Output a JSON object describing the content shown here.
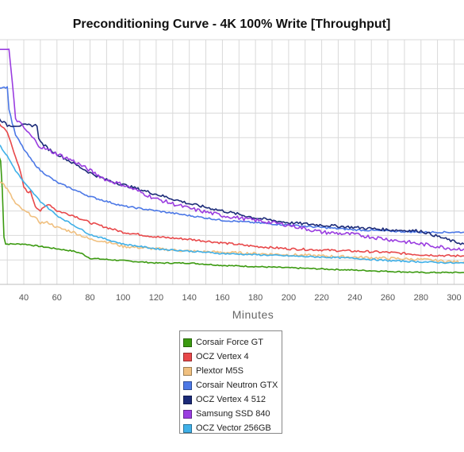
{
  "chart_data": {
    "type": "line",
    "title": "Preconditioning Curve - 4K 100% Write [Throughput]",
    "xlabel": "Minutes",
    "ylabel": "",
    "x_ticks": [
      40,
      60,
      80,
      100,
      120,
      140,
      160,
      180,
      200,
      220,
      240,
      260,
      280,
      300
    ],
    "xlim": [
      25,
      306
    ],
    "ylim": [
      0,
      100
    ],
    "grid": true,
    "legend_position": "bottom-center",
    "series": [
      {
        "name": "Corsair Force GT",
        "color": "#3b9a10",
        "points": [
          [
            25,
            54
          ],
          [
            26,
            52
          ],
          [
            27,
            40
          ],
          [
            28,
            20
          ],
          [
            29,
            17
          ],
          [
            30,
            17
          ],
          [
            40,
            17
          ],
          [
            50,
            16
          ],
          [
            60,
            15
          ],
          [
            70,
            14
          ],
          [
            75,
            13
          ],
          [
            80,
            11
          ],
          [
            100,
            10
          ],
          [
            120,
            9
          ],
          [
            140,
            9
          ],
          [
            160,
            8
          ],
          [
            180,
            7.5
          ],
          [
            200,
            7
          ],
          [
            220,
            6.5
          ],
          [
            240,
            6
          ],
          [
            260,
            5.5
          ],
          [
            280,
            5
          ],
          [
            300,
            5
          ],
          [
            306,
            5
          ]
        ]
      },
      {
        "name": "OCZ Vertex 4",
        "color": "#e8484a",
        "points": [
          [
            25,
            68
          ],
          [
            30,
            64
          ],
          [
            33,
            58
          ],
          [
            35,
            54
          ],
          [
            38,
            47
          ],
          [
            40,
            41
          ],
          [
            42,
            39
          ],
          [
            44,
            39
          ],
          [
            45,
            37
          ],
          [
            47,
            33
          ],
          [
            50,
            31
          ],
          [
            55,
            34
          ],
          [
            60,
            31
          ],
          [
            70,
            29
          ],
          [
            80,
            26
          ],
          [
            90,
            24
          ],
          [
            100,
            22
          ],
          [
            120,
            20
          ],
          [
            140,
            19
          ],
          [
            160,
            17.5
          ],
          [
            180,
            16
          ],
          [
            200,
            15
          ],
          [
            220,
            14.5
          ],
          [
            240,
            14
          ],
          [
            260,
            13.5
          ],
          [
            280,
            12.5
          ],
          [
            300,
            12
          ],
          [
            306,
            12
          ]
        ]
      },
      {
        "name": "Plextor M5S",
        "color": "#f0c080",
        "points": [
          [
            25,
            44
          ],
          [
            28,
            42
          ],
          [
            30,
            40
          ],
          [
            35,
            34
          ],
          [
            40,
            31
          ],
          [
            45,
            29
          ],
          [
            50,
            26
          ],
          [
            55,
            26
          ],
          [
            60,
            24
          ],
          [
            70,
            22
          ],
          [
            80,
            19
          ],
          [
            90,
            18
          ],
          [
            100,
            16
          ],
          [
            120,
            15
          ],
          [
            140,
            14
          ],
          [
            160,
            13.5
          ],
          [
            180,
            13
          ],
          [
            200,
            12.5
          ],
          [
            220,
            12
          ],
          [
            240,
            11.5
          ],
          [
            260,
            11
          ],
          [
            280,
            10.5
          ],
          [
            300,
            9.5
          ],
          [
            306,
            9.5
          ]
        ]
      },
      {
        "name": "Corsair Neutron GTX",
        "color": "#4c78e6",
        "points": [
          [
            25,
            83
          ],
          [
            30,
            83
          ],
          [
            31,
            74
          ],
          [
            33,
            68
          ],
          [
            35,
            63
          ],
          [
            40,
            57
          ],
          [
            45,
            52
          ],
          [
            50,
            48
          ],
          [
            60,
            43
          ],
          [
            70,
            40
          ],
          [
            80,
            37
          ],
          [
            100,
            33
          ],
          [
            120,
            31
          ],
          [
            140,
            29
          ],
          [
            160,
            27
          ],
          [
            180,
            26
          ],
          [
            200,
            25
          ],
          [
            220,
            24
          ],
          [
            240,
            23
          ],
          [
            260,
            22.5
          ],
          [
            280,
            22
          ],
          [
            300,
            22
          ],
          [
            306,
            22
          ]
        ]
      },
      {
        "name": "OCZ Vertex 4 512",
        "color": "#1b2a78",
        "points": [
          [
            25,
            70
          ],
          [
            30,
            67
          ],
          [
            35,
            67
          ],
          [
            40,
            67
          ],
          [
            45,
            67
          ],
          [
            48,
            67
          ],
          [
            49,
            62
          ],
          [
            50,
            60
          ],
          [
            55,
            57
          ],
          [
            60,
            55
          ],
          [
            70,
            51
          ],
          [
            80,
            47
          ],
          [
            90,
            44
          ],
          [
            100,
            42
          ],
          [
            120,
            38
          ],
          [
            140,
            34
          ],
          [
            160,
            31
          ],
          [
            180,
            28
          ],
          [
            200,
            26
          ],
          [
            220,
            25
          ],
          [
            240,
            24
          ],
          [
            260,
            23
          ],
          [
            280,
            22.5
          ],
          [
            300,
            18
          ],
          [
            306,
            17
          ]
        ]
      },
      {
        "name": "Samsung SSD 840",
        "color": "#9a3de0",
        "points": [
          [
            25,
            99
          ],
          [
            30,
            99
          ],
          [
            31,
            99
          ],
          [
            33,
            85
          ],
          [
            35,
            70
          ],
          [
            40,
            66
          ],
          [
            45,
            62
          ],
          [
            50,
            58
          ],
          [
            60,
            55
          ],
          [
            70,
            52
          ],
          [
            80,
            48
          ],
          [
            90,
            44
          ],
          [
            100,
            42
          ],
          [
            120,
            36
          ],
          [
            140,
            32
          ],
          [
            160,
            29
          ],
          [
            180,
            27
          ],
          [
            200,
            25
          ],
          [
            220,
            22
          ],
          [
            240,
            21
          ],
          [
            260,
            19
          ],
          [
            280,
            17
          ],
          [
            300,
            15
          ],
          [
            306,
            15
          ]
        ]
      },
      {
        "name": "OCZ Vector 256GB",
        "color": "#3fb0e8",
        "points": [
          [
            25,
            59
          ],
          [
            30,
            54
          ],
          [
            35,
            48
          ],
          [
            40,
            43
          ],
          [
            45,
            39
          ],
          [
            50,
            35
          ],
          [
            60,
            29
          ],
          [
            70,
            25
          ],
          [
            80,
            21
          ],
          [
            90,
            19
          ],
          [
            100,
            17
          ],
          [
            120,
            15
          ],
          [
            140,
            14
          ],
          [
            160,
            13
          ],
          [
            180,
            12.5
          ],
          [
            200,
            12
          ],
          [
            220,
            11.5
          ],
          [
            240,
            11
          ],
          [
            260,
            10
          ],
          [
            280,
            9.5
          ],
          [
            300,
            9
          ],
          [
            306,
            9
          ]
        ]
      }
    ]
  }
}
